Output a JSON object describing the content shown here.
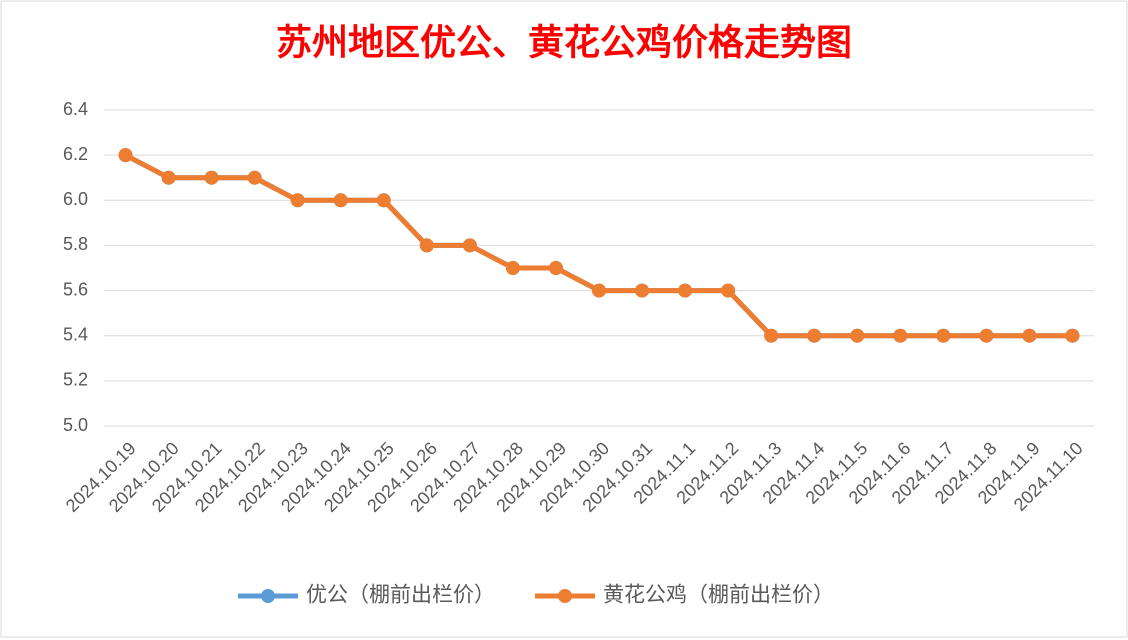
{
  "chart_data": {
    "type": "line",
    "title": "苏州地区优公、黄花公鸡价格走势图",
    "categories": [
      "2024.10.19",
      "2024.10.20",
      "2024.10.21",
      "2024.10.22",
      "2024.10.23",
      "2024.10.24",
      "2024.10.25",
      "2024.10.26",
      "2024.10.27",
      "2024.10.28",
      "2024.10.29",
      "2024.10.30",
      "2024.10.31",
      "2024.11.1",
      "2024.11.2",
      "2024.11.3",
      "2024.11.4",
      "2024.11.5",
      "2024.11.6",
      "2024.11.7",
      "2024.11.8",
      "2024.11.9",
      "2024.11.10"
    ],
    "series": [
      {
        "name": "优公（棚前出栏价）",
        "color": "#5b9bd5",
        "values": [
          6.2,
          6.1,
          6.1,
          6.1,
          6.0,
          6.0,
          6.0,
          5.8,
          5.8,
          5.7,
          5.7,
          5.6,
          5.6,
          5.6,
          5.6,
          5.4,
          5.4,
          5.4,
          5.4,
          5.4,
          5.4,
          5.4,
          5.4
        ]
      },
      {
        "name": "黄花公鸡（棚前出栏价）",
        "color": "#ed7d31",
        "values": [
          6.2,
          6.1,
          6.1,
          6.1,
          6.0,
          6.0,
          6.0,
          5.8,
          5.8,
          5.7,
          5.7,
          5.6,
          5.6,
          5.6,
          5.6,
          5.4,
          5.4,
          5.4,
          5.4,
          5.4,
          5.4,
          5.4,
          5.4
        ]
      }
    ],
    "ylim": [
      5.0,
      6.4
    ],
    "yticks": [
      {
        "value": 5.0,
        "label": "5.0"
      },
      5.2,
      5.4,
      5.6,
      5.8,
      {
        "value": 6.0,
        "label": "6.0"
      },
      6.2,
      6.4
    ],
    "grid": true,
    "legend": "bottom"
  }
}
